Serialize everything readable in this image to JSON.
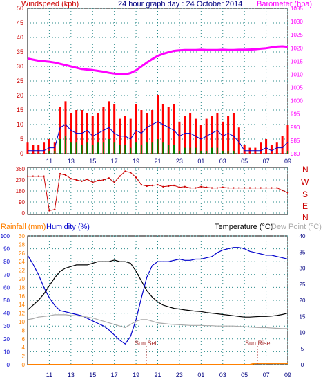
{
  "header": {
    "windspeed_label": "Windspeed (kph)",
    "title": "24 hour graph day : 24 October 2014",
    "barometer_label": "Barometer (hpa)"
  },
  "direction_labels": [
    "N",
    "W",
    "S",
    "E",
    "N"
  ],
  "bottom_header": {
    "rainfall_label": "Rainfall (mm)",
    "humidity_label": "Humidity (%)",
    "temperature_label": "Temperature (°C)",
    "dewpoint_label": "Dew Point (°C)"
  },
  "annotations": {
    "sun_set": "Sun Set",
    "sun_rise": "Sun Rise"
  },
  "colors": {
    "wind_speed": "#ff0000",
    "wind_avg": "#0000cc",
    "wind_green": "#008000",
    "barometer": "#ff00ff",
    "direction": "#cc0000",
    "temperature": "#000000",
    "humidity": "#0000cc",
    "dewpoint": "#aaaaaa",
    "rainfall": "#ff8000",
    "grid": "#2a8a8a",
    "axis_left": "#cc0000",
    "axis_right": "#ff00ff",
    "humidity_axis": "#0000cc",
    "rain_axis": "#ff8000"
  },
  "chart_data": [
    {
      "type": "line",
      "name": "wind-barometer",
      "x_ticks": [
        "11",
        "13",
        "15",
        "17",
        "19",
        "21",
        "23",
        "01",
        "03",
        "05",
        "07",
        "09"
      ],
      "y_left_ticks": [
        0,
        5,
        10,
        15,
        20,
        25,
        30,
        35,
        40,
        45,
        50
      ],
      "ylim_left": [
        0,
        50
      ],
      "y_right_ticks": [
        980,
        985,
        990,
        995,
        1000,
        1005,
        1010,
        1015,
        1020,
        1025,
        1030,
        1035
      ],
      "ylim_right": [
        980,
        1035
      ],
      "x_hours": [
        9,
        9.5,
        10,
        10.5,
        11,
        11.5,
        12,
        12.5,
        13,
        13.5,
        14,
        14.5,
        15,
        15.5,
        16,
        16.5,
        17,
        17.5,
        18,
        18.5,
        19,
        19.5,
        20,
        20.5,
        21,
        21.5,
        22,
        22.5,
        23,
        23.5,
        24,
        24.5,
        25,
        25.5,
        26,
        26.5,
        27,
        27.5,
        28,
        28.5,
        29,
        29.5,
        30,
        30.5,
        31,
        31.5,
        32,
        32.5,
        33
      ],
      "series": [
        {
          "color": "#ff0000",
          "values": [
            4,
            3,
            3,
            4,
            5,
            4,
            16,
            18,
            14,
            15,
            15,
            14,
            13,
            14,
            16,
            18,
            17,
            12,
            13,
            12,
            17,
            15,
            14,
            15,
            20,
            17,
            16,
            17,
            11,
            13,
            14,
            12,
            10,
            12,
            13,
            14,
            11,
            13,
            14,
            9,
            3,
            2,
            2,
            4,
            5,
            3,
            4,
            6,
            10
          ]
        },
        {
          "color": "#0000cc",
          "values": [
            1,
            1,
            1,
            1,
            2,
            2,
            9,
            10,
            8,
            7,
            7,
            8,
            6,
            7,
            8,
            9,
            7,
            6,
            6,
            5,
            8,
            7,
            9,
            10,
            11,
            10,
            9,
            8,
            6,
            7,
            7,
            6,
            5,
            6,
            7,
            8,
            6,
            7,
            6,
            4,
            1,
            1,
            1,
            1,
            2,
            1,
            2,
            2,
            4
          ]
        },
        {
          "color": "#008000",
          "values": [
            0,
            0,
            0,
            0,
            1,
            1,
            5,
            6,
            4,
            4,
            3,
            4,
            3,
            4,
            4,
            5,
            4,
            3,
            3,
            2,
            4,
            3,
            4,
            4,
            5,
            4,
            3,
            3,
            1,
            2,
            2,
            2,
            1,
            1,
            2,
            2,
            1,
            1,
            1,
            0,
            0,
            0,
            0,
            0,
            0,
            0,
            0,
            0,
            1
          ]
        },
        {
          "color": "#ff00ff",
          "axis": "right",
          "values": [
            1016,
            1015.6,
            1015.2,
            1015.0,
            1014.8,
            1014.5,
            1014.0,
            1013.5,
            1013.0,
            1012.5,
            1012.0,
            1011.8,
            1011.6,
            1011.3,
            1011.0,
            1010.6,
            1010.3,
            1010.1,
            1010.0,
            1010.5,
            1011.5,
            1013.0,
            1014.5,
            1015.8,
            1017.0,
            1017.8,
            1018.4,
            1018.9,
            1019.1,
            1019.2,
            1019.2,
            1019.2,
            1019.3,
            1019.2,
            1019.2,
            1019.2,
            1019.3,
            1019.2,
            1019.2,
            1019.3,
            1019.3,
            1019.4,
            1019.5,
            1019.7,
            1019.9,
            1020.2,
            1020.5,
            1020.6,
            1020.4
          ]
        }
      ]
    },
    {
      "type": "scatter",
      "name": "wind-direction",
      "x_ticks": [
        "11",
        "13",
        "15",
        "17",
        "19",
        "21",
        "23",
        "01",
        "03",
        "05",
        "07",
        "09"
      ],
      "y_ticks": [
        0,
        90,
        180,
        270,
        360
      ],
      "ylim": [
        0,
        360
      ],
      "x_hours": [
        9,
        9.5,
        10,
        10.5,
        11,
        11.5,
        12,
        12.5,
        13,
        13.5,
        14,
        14.5,
        15,
        15.5,
        16,
        16.5,
        17,
        17.5,
        18,
        18.5,
        19,
        19.5,
        20,
        20.5,
        21,
        21.5,
        22,
        22.5,
        23,
        23.5,
        24,
        24.5,
        25,
        25.5,
        26,
        26.5,
        27,
        27.5,
        28,
        28.5,
        29,
        29.5,
        30,
        30.5,
        31,
        31.5,
        32,
        32.5,
        33
      ],
      "values": [
        300,
        300,
        300,
        300,
        20,
        30,
        320,
        310,
        280,
        270,
        260,
        275,
        250,
        265,
        270,
        285,
        250,
        300,
        340,
        330,
        290,
        230,
        220,
        225,
        230,
        215,
        220,
        225,
        210,
        215,
        205,
        205,
        215,
        210,
        205,
        205,
        210,
        205,
        205,
        205,
        205,
        205,
        205,
        205,
        205,
        205,
        205,
        185,
        165
      ]
    },
    {
      "type": "line",
      "name": "temperature-humidity",
      "x_ticks": [
        "11",
        "13",
        "15",
        "17",
        "19",
        "21",
        "23",
        "01",
        "03",
        "05",
        "07",
        "09"
      ],
      "humidity_ticks": [
        0,
        10,
        20,
        30,
        40,
        50,
        60,
        70,
        80,
        90,
        100
      ],
      "humidity_ylim": [
        0,
        100
      ],
      "rain_ticks": [
        0,
        2,
        4,
        6,
        8,
        10,
        12,
        14,
        16,
        18,
        20,
        22,
        24,
        26,
        28,
        30
      ],
      "rain_ylim": [
        0,
        30
      ],
      "temp_ticks": [
        0,
        5,
        10,
        15,
        20,
        25,
        30,
        35,
        40
      ],
      "temp_ylim": [
        0,
        40
      ],
      "x_hours": [
        9,
        9.5,
        10,
        10.5,
        11,
        11.5,
        12,
        12.5,
        13,
        13.5,
        14,
        14.5,
        15,
        15.5,
        16,
        16.5,
        17,
        17.5,
        18,
        18.5,
        19,
        19.5,
        20,
        20.5,
        21,
        21.5,
        22,
        22.5,
        23,
        23.5,
        24,
        24.5,
        25,
        25.5,
        26,
        26.5,
        27,
        27.5,
        28,
        28.5,
        29,
        29.5,
        30,
        30.5,
        31,
        31.5,
        32,
        32.5,
        33
      ],
      "series": [
        {
          "color": "#000000",
          "axis": "temperature",
          "values": [
            17,
            18.5,
            20,
            22,
            24.5,
            27,
            29,
            30,
            30.5,
            31,
            31,
            31,
            31.5,
            32,
            32,
            32,
            32.5,
            32,
            32,
            31.5,
            29,
            26,
            23,
            21,
            19.5,
            18.5,
            18,
            17.5,
            17.3,
            17,
            16.8,
            16.6,
            16.5,
            16.2,
            16,
            15.8,
            15.6,
            15.4,
            15.2,
            15,
            14.8,
            14.8,
            14.9,
            15,
            15,
            15.1,
            15.3,
            15.6,
            16
          ]
        },
        {
          "color": "#0000cc",
          "axis": "humidity",
          "values": [
            85,
            78,
            70,
            60,
            52,
            46,
            42,
            41,
            40,
            39,
            38,
            36,
            34,
            32,
            30,
            27,
            23,
            19,
            16,
            22,
            35,
            52,
            68,
            77,
            80,
            80,
            80,
            81,
            82,
            81,
            81,
            82,
            82,
            83,
            84,
            87,
            89,
            90,
            91,
            91,
            90,
            88,
            87,
            86,
            85,
            85,
            84,
            83,
            82
          ]
        },
        {
          "color": "#aaaaaa",
          "axis": "temperature",
          "values": [
            14,
            14.3,
            14.8,
            15,
            15.2,
            15.5,
            15.5,
            15.5,
            15.3,
            15.2,
            15,
            14.8,
            14.5,
            14,
            13.5,
            13,
            12.5,
            12,
            11.5,
            12.5,
            13.5,
            14,
            14,
            13.5,
            13,
            12.8,
            12.6,
            12.5,
            12.4,
            12.3,
            12.2,
            12.2,
            12.2,
            12.1,
            12.1,
            12,
            12,
            12,
            12,
            11.9,
            11.8,
            11.7,
            11.6,
            11.5,
            11.5,
            11.4,
            11.3,
            11.2,
            11.2
          ]
        },
        {
          "color": "#ff8000",
          "axis": "rain",
          "values": [
            0,
            0,
            0,
            0,
            0,
            0,
            0,
            0,
            0,
            0,
            0,
            0,
            0,
            0,
            0,
            0,
            0,
            0,
            0,
            0,
            0,
            0,
            0,
            0,
            0,
            0,
            0,
            0,
            0,
            0,
            0,
            0,
            0,
            0,
            0,
            0,
            0,
            0,
            0,
            0,
            0,
            0,
            0.3,
            0.3,
            0.3,
            0.3,
            0.3,
            0.3,
            0.3
          ]
        }
      ]
    }
  ]
}
